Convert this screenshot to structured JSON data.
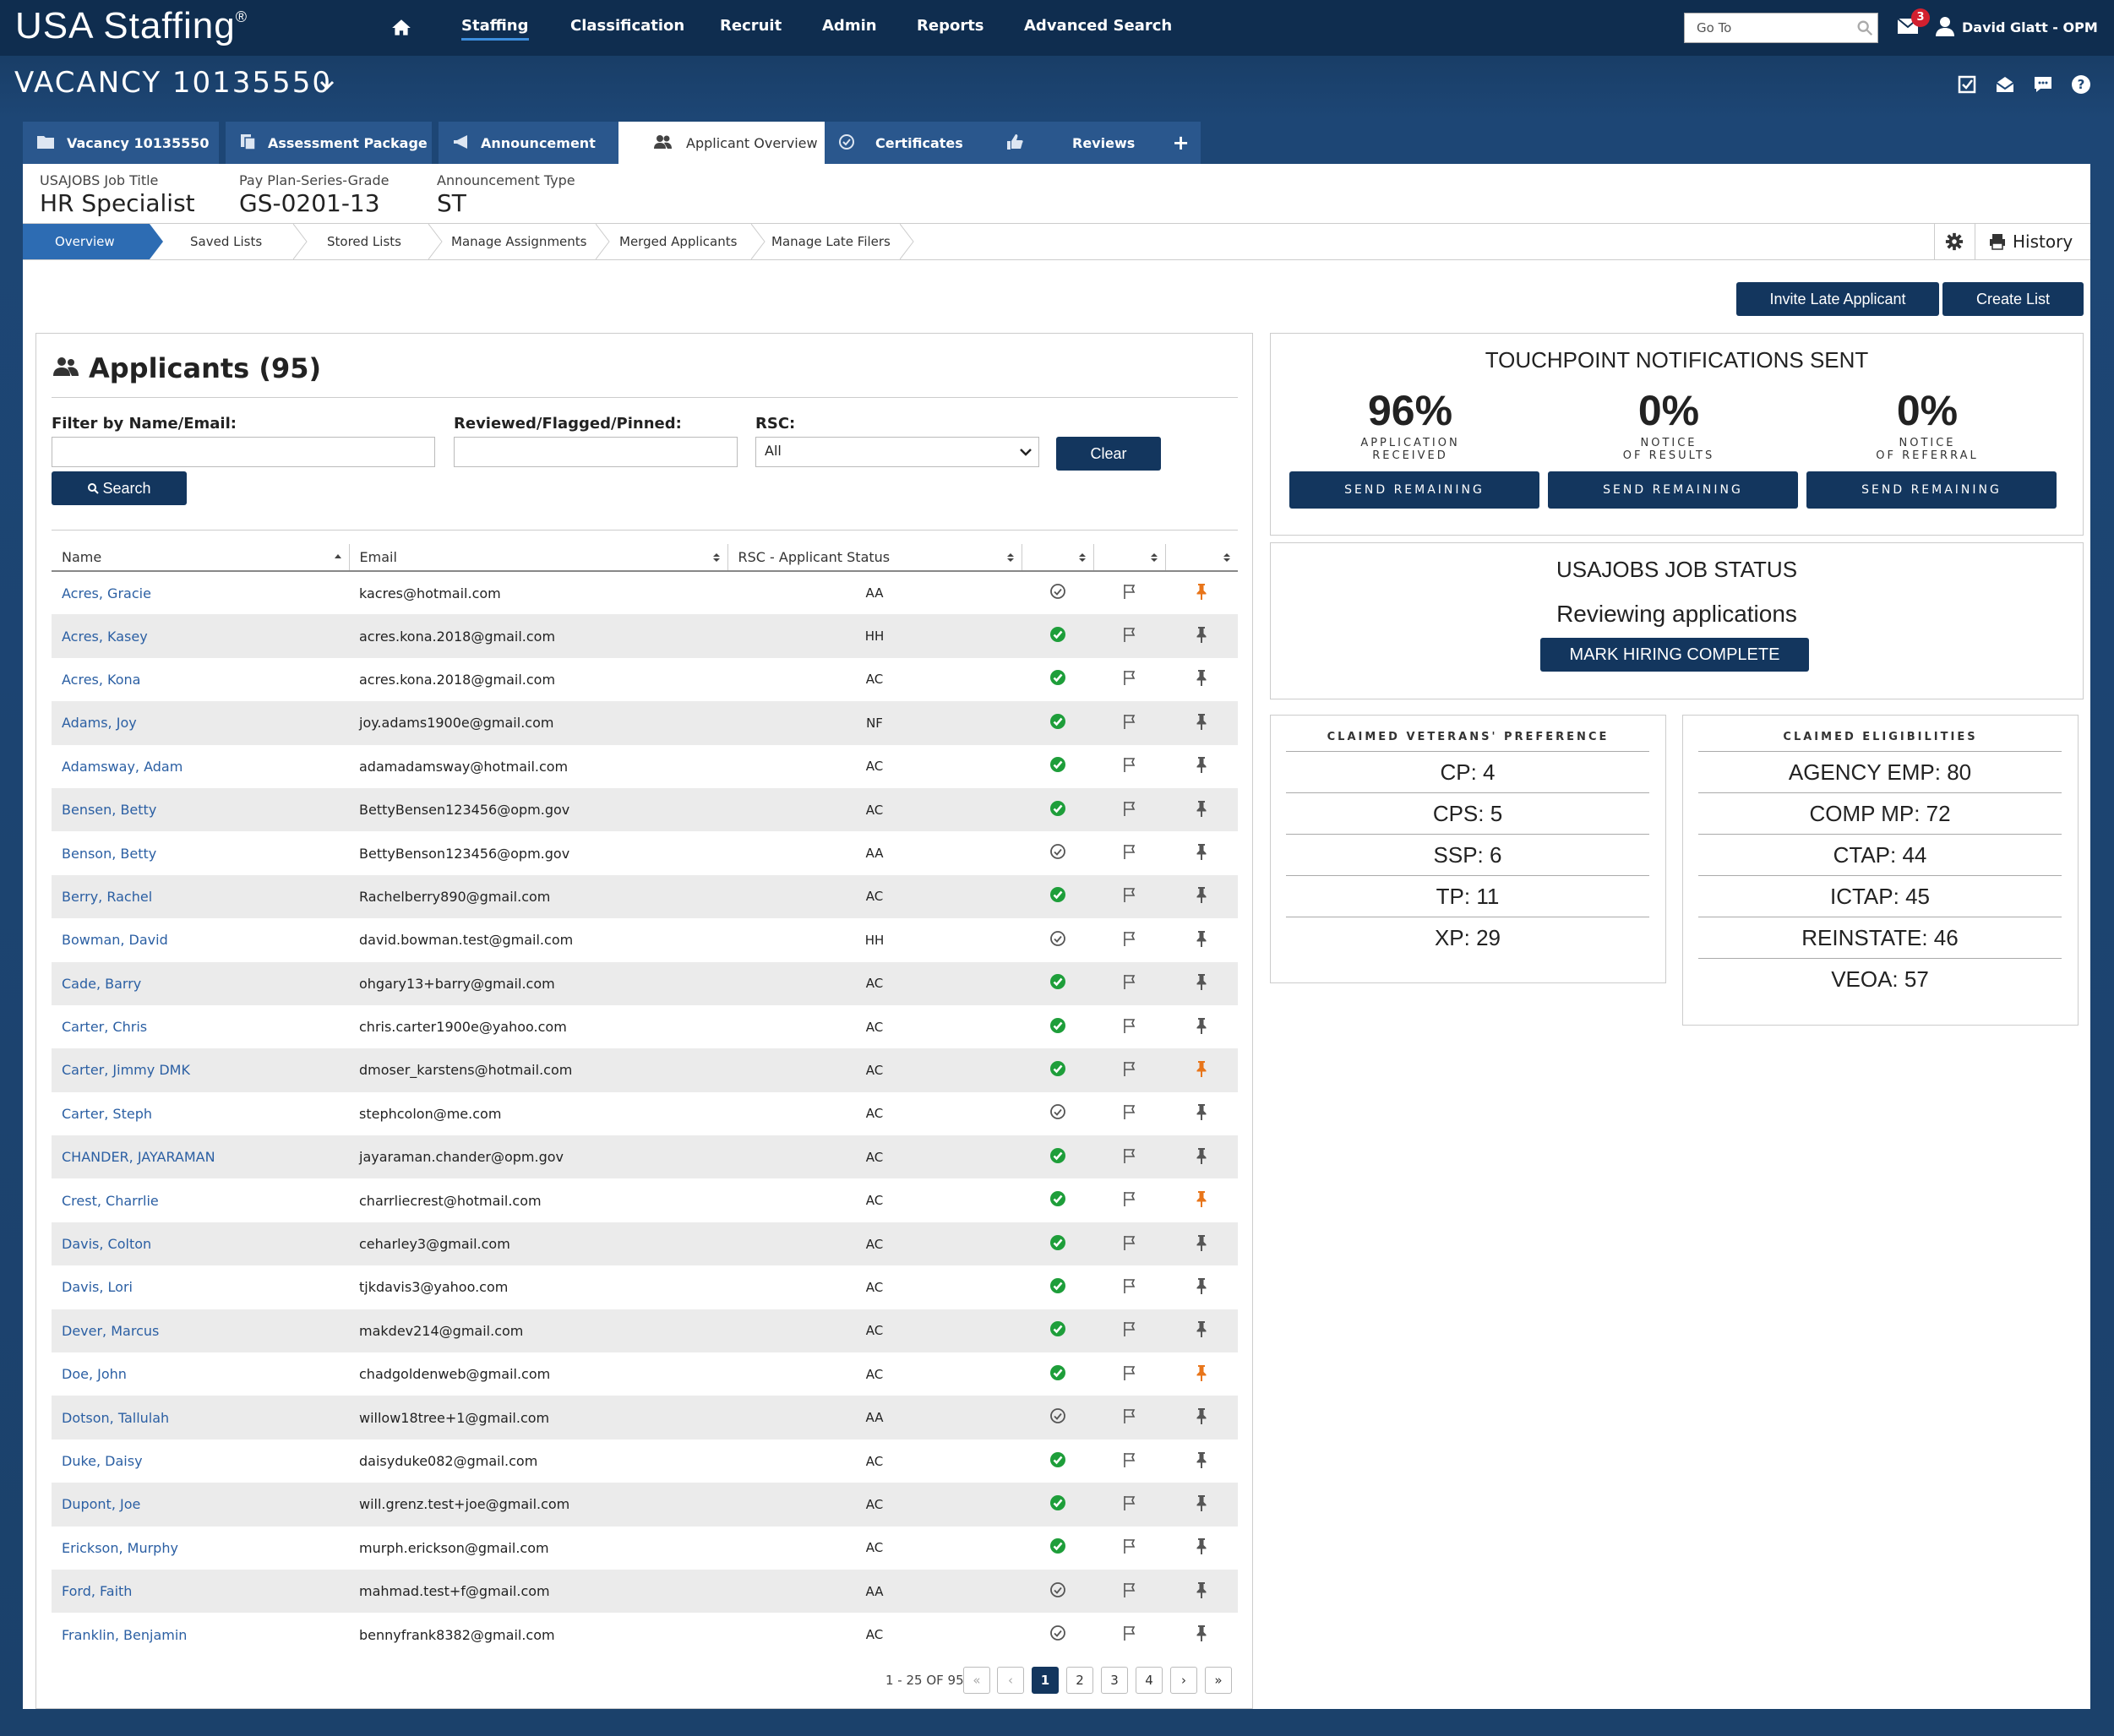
{
  "app": {
    "logo": "USA Staffing",
    "logo_mark": "®"
  },
  "nav": {
    "items": [
      "Staffing",
      "Classification",
      "Recruit",
      "Admin",
      "Reports",
      "Advanced Search"
    ],
    "active": "Staffing",
    "goto_placeholder": "Go To",
    "notification_count": "3",
    "user": "David Glatt - OPM"
  },
  "vacancy": {
    "title": "VACANCY 10135550"
  },
  "tabs": [
    "Vacancy 10135550",
    "Assessment Package",
    "Announcement",
    "Applicant Overview",
    "Certificates",
    "Reviews",
    "+"
  ],
  "active_tab": "Applicant Overview",
  "job": {
    "title_label": "USAJOBS Job Title",
    "title": "HR Specialist",
    "grade_label": "Pay Plan-Series-Grade",
    "grade": "GS-0201-13",
    "type_label": "Announcement Type",
    "type": "ST"
  },
  "subnav": [
    "Overview",
    "Saved Lists",
    "Stored Lists",
    "Manage Assignments",
    "Merged Applicants",
    "Manage Late Filers"
  ],
  "history_label": "History",
  "actions": {
    "invite": "Invite Late Applicant",
    "create": "Create List"
  },
  "applicants": {
    "title": "Applicants (95)",
    "filter_label": "Filter by Name/Email:",
    "reviewed_label": "Reviewed/Flagged/Pinned:",
    "rsc_label": "RSC:",
    "rsc_value": "All",
    "clear": "Clear",
    "search": "Search",
    "columns": [
      "Name",
      "Email",
      "RSC - Applicant Status"
    ],
    "rows": [
      {
        "name": "Acres, Gracie",
        "email": "kacres@hotmail.com",
        "status": "AA",
        "reviewed": false,
        "pinned": true
      },
      {
        "name": "Acres, Kasey",
        "email": "acres.kona.2018@gmail.com",
        "status": "HH",
        "reviewed": true,
        "pinned": false
      },
      {
        "name": "Acres, Kona",
        "email": "acres.kona.2018@gmail.com",
        "status": "AC",
        "reviewed": true,
        "pinned": false
      },
      {
        "name": "Adams, Joy",
        "email": "joy.adams1900e@gmail.com",
        "status": "NF",
        "reviewed": true,
        "pinned": false
      },
      {
        "name": "Adamsway, Adam",
        "email": "adamadamsway@hotmail.com",
        "status": "AC",
        "reviewed": true,
        "pinned": false
      },
      {
        "name": "Bensen, Betty",
        "email": "BettyBensen123456@opm.gov",
        "status": "AC",
        "reviewed": true,
        "pinned": false
      },
      {
        "name": "Benson, Betty",
        "email": "BettyBenson123456@opm.gov",
        "status": "AA",
        "reviewed": false,
        "pinned": false
      },
      {
        "name": "Berry, Rachel",
        "email": "Rachelberry890@gmail.com",
        "status": "AC",
        "reviewed": true,
        "pinned": false
      },
      {
        "name": "Bowman, David",
        "email": "david.bowman.test@gmail.com",
        "status": "HH",
        "reviewed": false,
        "pinned": false
      },
      {
        "name": "Cade, Barry",
        "email": "ohgary13+barry@gmail.com",
        "status": "AC",
        "reviewed": true,
        "pinned": false
      },
      {
        "name": "Carter, Chris",
        "email": "chris.carter1900e@yahoo.com",
        "status": "AC",
        "reviewed": true,
        "pinned": false
      },
      {
        "name": "Carter, Jimmy DMK",
        "email": "dmoser_karstens@hotmail.com",
        "status": "AC",
        "reviewed": true,
        "pinned": true
      },
      {
        "name": "Carter, Steph",
        "email": "stephcolon@me.com",
        "status": "AC",
        "reviewed": false,
        "pinned": false
      },
      {
        "name": "CHANDER, JAYARAMAN",
        "email": "jayaraman.chander@opm.gov",
        "status": "AC",
        "reviewed": true,
        "pinned": false
      },
      {
        "name": "Crest, Charrlie",
        "email": "charrliecrest@hotmail.com",
        "status": "AC",
        "reviewed": true,
        "pinned": true
      },
      {
        "name": "Davis, Colton",
        "email": "ceharley3@gmail.com",
        "status": "AC",
        "reviewed": true,
        "pinned": false
      },
      {
        "name": "Davis, Lori",
        "email": "tjkdavis3@yahoo.com",
        "status": "AC",
        "reviewed": true,
        "pinned": false
      },
      {
        "name": "Dever, Marcus",
        "email": "makdev214@gmail.com",
        "status": "AC",
        "reviewed": true,
        "pinned": false
      },
      {
        "name": "Doe, John",
        "email": "chadgoldenweb@gmail.com",
        "status": "AC",
        "reviewed": true,
        "pinned": true
      },
      {
        "name": "Dotson, Tallulah",
        "email": "willow18tree+1@gmail.com",
        "status": "AA",
        "reviewed": false,
        "pinned": false
      },
      {
        "name": "Duke, Daisy",
        "email": "daisyduke082@gmail.com",
        "status": "AC",
        "reviewed": true,
        "pinned": false
      },
      {
        "name": "Dupont, Joe",
        "email": "will.grenz.test+joe@gmail.com",
        "status": "AC",
        "reviewed": true,
        "pinned": false
      },
      {
        "name": "Erickson, Murphy",
        "email": "murph.erickson@gmail.com",
        "status": "AC",
        "reviewed": true,
        "pinned": false
      },
      {
        "name": "Ford, Faith",
        "email": "mahmad.test+f@gmail.com",
        "status": "AA",
        "reviewed": false,
        "pinned": false
      },
      {
        "name": "Franklin, Benjamin",
        "email": "bennyfrank8382@gmail.com",
        "status": "AC",
        "reviewed": false,
        "pinned": false
      }
    ],
    "range": "1 - 25 OF 95",
    "pages": [
      "1",
      "2",
      "3",
      "4"
    ],
    "current_page": "1"
  },
  "touchpoint": {
    "title": "TOUCHPOINT NOTIFICATIONS SENT",
    "items": [
      {
        "pct": "96%",
        "l1": "APPLICATION",
        "l2": "RECEIVED"
      },
      {
        "pct": "0%",
        "l1": "NOTICE",
        "l2": "OF RESULTS"
      },
      {
        "pct": "0%",
        "l1": "NOTICE",
        "l2": "OF REFERRAL"
      }
    ],
    "send": "SEND REMAINING"
  },
  "job_status": {
    "title": "USAJOBS JOB STATUS",
    "status": "Reviewing applications",
    "button": "MARK HIRING COMPLETE"
  },
  "veterans": {
    "title": "CLAIMED VETERANS' PREFERENCE",
    "items": [
      "CP: 4",
      "CPS: 5",
      "SSP: 6",
      "TP: 11",
      "XP: 29"
    ]
  },
  "eligibilities": {
    "title": "CLAIMED ELIGIBILITIES",
    "items": [
      "AGENCY EMP: 80",
      "COMP MP: 72",
      "CTAP: 44",
      "ICTAP: 45",
      "REINSTATE: 46",
      "VEOA: 57"
    ]
  },
  "colors": {
    "navy": "#13365e",
    "link": "#2b5fa3",
    "green": "#1e9e3a",
    "orange": "#e8751a",
    "tab": "#2a578d"
  }
}
